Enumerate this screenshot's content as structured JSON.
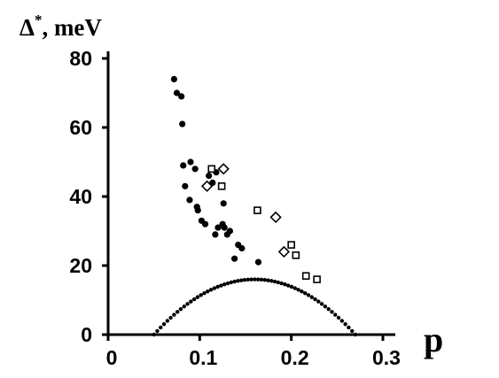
{
  "chart_data": {
    "type": "scatter",
    "xlabel": "p",
    "ylabel_main": "Δ",
    "ylabel_sup": "*",
    "ylabel_rest": ", meV",
    "xlim": [
      0,
      0.3
    ],
    "ylim": [
      0,
      80
    ],
    "x_ticks": [
      {
        "value": 0,
        "label": "0"
      },
      {
        "value": 0.1,
        "label": "0.1"
      },
      {
        "value": 0.2,
        "label": "0.2"
      },
      {
        "value": 0.3,
        "label": "0.3"
      }
    ],
    "y_ticks": [
      {
        "value": 0,
        "label": "0"
      },
      {
        "value": 20,
        "label": "20"
      },
      {
        "value": 40,
        "label": "40"
      },
      {
        "value": 60,
        "label": "60"
      },
      {
        "value": 80,
        "label": "80"
      }
    ],
    "grid": false,
    "legend": "none",
    "colors": {
      "marker": "#000000",
      "background": "#ffffff"
    },
    "series": [
      {
        "marker": "filled-circle",
        "points": [
          [
            0.072,
            74
          ],
          [
            0.075,
            70
          ],
          [
            0.08,
            69
          ],
          [
            0.081,
            61
          ],
          [
            0.082,
            49
          ],
          [
            0.084,
            43
          ],
          [
            0.09,
            50
          ],
          [
            0.089,
            39
          ],
          [
            0.095,
            48
          ],
          [
            0.097,
            37
          ],
          [
            0.098,
            36
          ],
          [
            0.102,
            33
          ],
          [
            0.106,
            32
          ],
          [
            0.11,
            46
          ],
          [
            0.114,
            44
          ],
          [
            0.117,
            29
          ],
          [
            0.118,
            47
          ],
          [
            0.12,
            31
          ],
          [
            0.125,
            32
          ],
          [
            0.126,
            38
          ],
          [
            0.127,
            31
          ],
          [
            0.13,
            29
          ],
          [
            0.133,
            30
          ],
          [
            0.138,
            22
          ],
          [
            0.142,
            26
          ],
          [
            0.146,
            25
          ],
          [
            0.164,
            21
          ]
        ]
      },
      {
        "marker": "open-square",
        "points": [
          [
            0.113,
            48
          ],
          [
            0.124,
            43
          ],
          [
            0.163,
            36
          ],
          [
            0.2,
            26
          ],
          [
            0.205,
            23
          ],
          [
            0.216,
            17
          ],
          [
            0.228,
            16
          ]
        ]
      },
      {
        "marker": "open-diamond",
        "points": [
          [
            0.108,
            43
          ],
          [
            0.126,
            48
          ],
          [
            0.183,
            34
          ],
          [
            0.192,
            24
          ]
        ]
      },
      {
        "marker": "dotted-curve",
        "curve": {
          "type": "parabola",
          "x_start": 0.05,
          "x_end": 0.27,
          "peak_x": 0.16,
          "peak_y": 16
        }
      }
    ]
  }
}
